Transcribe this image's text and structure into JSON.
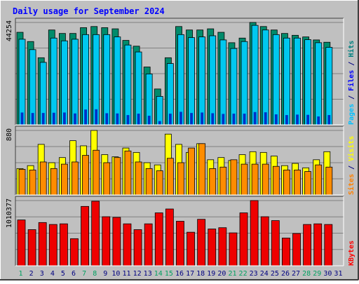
{
  "chart_data": {
    "type": "bar",
    "title": "Daily usage for September 2024",
    "categories": [
      "1",
      "2",
      "3",
      "4",
      "5",
      "6",
      "7",
      "8",
      "9",
      "10",
      "11",
      "12",
      "13",
      "14",
      "15",
      "16",
      "17",
      "18",
      "19",
      "20",
      "21",
      "22",
      "23",
      "24",
      "25",
      "26",
      "27",
      "28",
      "29",
      "30",
      "31"
    ],
    "weekend_days": [
      "1",
      "7",
      "8",
      "14",
      "15",
      "21",
      "22",
      "28",
      "29"
    ],
    "panels": [
      {
        "id": "top",
        "ymax_label": "44254",
        "ymax": 44254,
        "legend": [
          {
            "text": "Pages",
            "color": "#00c0ff"
          },
          {
            "text": " / ",
            "color": "#000080"
          },
          {
            "text": "Files",
            "color": "#0000ff"
          },
          {
            "text": " / ",
            "color": "#000080"
          },
          {
            "text": "Hits",
            "color": "#008080"
          }
        ],
        "series": [
          {
            "name": "Hits",
            "color": "#008b6b",
            "values": [
              40000,
              36000,
              29000,
              41000,
              39500,
              39500,
              42000,
              42500,
              42000,
              41500,
              36500,
              34000,
              25000,
              15500,
              29000,
              42500,
              41000,
              41000,
              41500,
              40000,
              35500,
              37500,
              44254,
              42500,
              41000,
              39500,
              38700,
              38000,
              36700,
              35700,
              null
            ]
          },
          {
            "name": "Files",
            "color": "#00c8f0",
            "values": [
              37000,
              32500,
              27000,
              37500,
              36300,
              37000,
              39000,
              39000,
              39000,
              38000,
              34500,
              31500,
              22000,
              12300,
              26500,
              39000,
              37700,
              38000,
              38500,
              36700,
              33000,
              36000,
              43000,
              41000,
              39000,
              37500,
              37500,
              36800,
              35500,
              33500,
              null
            ]
          },
          {
            "name": "Pages",
            "color": "#0030c8",
            "values": [
              5200,
              5000,
              5000,
              5100,
              5200,
              4800,
              6500,
              6600,
              4900,
              4800,
              4100,
              4700,
              3800,
              1500,
              4700,
              5500,
              5000,
              5200,
              4900,
              4600,
              4700,
              4700,
              5400,
              5300,
              4400,
              4100,
              4300,
              4200,
              3500,
              4100,
              null
            ]
          }
        ]
      },
      {
        "id": "middle",
        "ymax_label": "880",
        "ymax": 880,
        "legend": [
          {
            "text": "Sites",
            "color": "#ff8000"
          },
          {
            "text": " / ",
            "color": "#000080"
          },
          {
            "text": "Visits",
            "color": "#ffff00"
          }
        ],
        "series": [
          {
            "name": "Visits",
            "color": "#ffff00",
            "values": [
              360,
              400,
              690,
              440,
              510,
              740,
              670,
              880,
              550,
              520,
              640,
              580,
              440,
              410,
              830,
              690,
              580,
              700,
              480,
              510,
              470,
              550,
              590,
              580,
              530,
              400,
              430,
              370,
              480,
              590,
              null
            ]
          },
          {
            "name": "Sites",
            "color": "#ff8c00",
            "values": [
              350,
              340,
              450,
              360,
              420,
              450,
              540,
              610,
              440,
              510,
              600,
              450,
              360,
              330,
              500,
              440,
              640,
              700,
              360,
              380,
              480,
              420,
              420,
              420,
              390,
              340,
              340,
              320,
              410,
              380,
              null
            ]
          }
        ]
      },
      {
        "id": "bottom",
        "ymax_label": "1010377",
        "ymax": 1010377,
        "legend": [
          {
            "text": "KBytes",
            "color": "#ff0000"
          }
        ],
        "series": [
          {
            "name": "KBytes",
            "color": "#ee0000",
            "values": [
              710000,
              560000,
              670000,
              640000,
              650000,
              420000,
              920000,
              1000000,
              760000,
              750000,
              650000,
              560000,
              650000,
              820000,
              880000,
              690000,
              520000,
              720000,
              570000,
              590000,
              510000,
              820000,
              1010377,
              760000,
              700000,
              430000,
              500000,
              640000,
              650000,
              640000,
              null
            ]
          }
        ]
      }
    ],
    "colors": {
      "frame_bg": "#c0c0c0",
      "plot_bg": "#c0c0c0",
      "gridline": "#808080",
      "title": "#0000ff",
      "weekday_label": "#000080",
      "weekend_label": "#00a060"
    }
  }
}
